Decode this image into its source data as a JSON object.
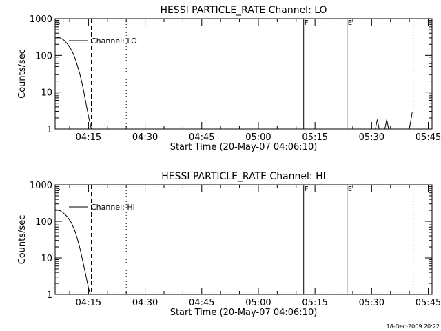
{
  "timestamp": "18-Dec-2009 20:22",
  "chart_data": [
    {
      "type": "line",
      "title": "HESSI PARTICLE_RATE Channel: LO",
      "xlabel": "Start Time (20-May-07 04:06:10)",
      "ylabel": "Counts/sec",
      "yscale": "log",
      "xlim": [
        "04:06:10",
        "05:46:00"
      ],
      "ylim": [
        1,
        1000
      ],
      "xticks": [
        "04:15",
        "04:30",
        "04:45",
        "05:00",
        "05:15",
        "05:30",
        "05:45"
      ],
      "yticks": [
        "1",
        "10",
        "100",
        "1000"
      ],
      "legend": {
        "entries": [
          "Channel: LO"
        ],
        "position": "top-left"
      },
      "markers": [
        {
          "label": "S",
          "time": "04:06:10",
          "style": "none"
        },
        {
          "label": "",
          "time": "04:15:45",
          "style": "dashed"
        },
        {
          "label": "",
          "time": "04:25:00",
          "style": "dotted"
        },
        {
          "label": "F",
          "time": "05:12:00",
          "style": "solid"
        },
        {
          "label": "E",
          "time": "05:23:30",
          "style": "solid"
        },
        {
          "label": "",
          "time": "05:41:00",
          "style": "dotted"
        }
      ],
      "series": [
        {
          "name": "Channel: LO",
          "segments": [
            [
              [
                "04:06:10",
                320
              ],
              [
                "04:07:30",
                300
              ],
              [
                "04:08:30",
                260
              ],
              [
                "04:09:30",
                200
              ],
              [
                "04:10:30",
                140
              ],
              [
                "04:11:15",
                95
              ],
              [
                "04:12:00",
                55
              ],
              [
                "04:12:45",
                30
              ],
              [
                "04:13:30",
                14
              ],
              [
                "04:14:15",
                5.5
              ],
              [
                "04:15:00",
                2.2
              ],
              [
                "04:15:45",
                1
              ]
            ],
            [
              [
                "05:31:00",
                1
              ],
              [
                "05:31:30",
                1.8
              ],
              [
                "05:32:00",
                1
              ]
            ],
            [
              [
                "05:33:30",
                1
              ],
              [
                "05:34:00",
                1.8
              ],
              [
                "05:34:30",
                1
              ]
            ],
            [
              [
                "05:40:00",
                1
              ],
              [
                "05:40:45",
                2.8
              ]
            ]
          ]
        }
      ]
    },
    {
      "type": "line",
      "title": "HESSI PARTICLE_RATE Channel: HI",
      "xlabel": "Start Time (20-May-07 04:06:10)",
      "ylabel": "Counts/sec",
      "yscale": "log",
      "xlim": [
        "04:06:10",
        "05:46:00"
      ],
      "ylim": [
        1,
        1000
      ],
      "xticks": [
        "04:15",
        "04:30",
        "04:45",
        "05:00",
        "05:15",
        "05:30",
        "05:45"
      ],
      "yticks": [
        "1",
        "10",
        "100",
        "1000"
      ],
      "legend": {
        "entries": [
          "Channel: HI"
        ],
        "position": "top-left"
      },
      "markers": [
        {
          "label": "S",
          "time": "04:06:10",
          "style": "none"
        },
        {
          "label": "",
          "time": "04:15:45",
          "style": "dashed"
        },
        {
          "label": "",
          "time": "04:25:00",
          "style": "dotted"
        },
        {
          "label": "F",
          "time": "05:12:00",
          "style": "solid"
        },
        {
          "label": "E",
          "time": "05:23:30",
          "style": "solid"
        },
        {
          "label": "",
          "time": "05:41:00",
          "style": "dotted"
        }
      ],
      "series": [
        {
          "name": "Channel: HI",
          "segments": [
            [
              [
                "04:06:10",
                210
              ],
              [
                "04:07:30",
                195
              ],
              [
                "04:08:30",
                165
              ],
              [
                "04:09:30",
                130
              ],
              [
                "04:10:30",
                90
              ],
              [
                "04:11:15",
                60
              ],
              [
                "04:12:00",
                35
              ],
              [
                "04:12:45",
                18
              ],
              [
                "04:13:30",
                8
              ],
              [
                "04:14:15",
                3.5
              ],
              [
                "04:15:00",
                1.5
              ],
              [
                "04:15:30",
                1
              ]
            ]
          ]
        }
      ]
    }
  ]
}
